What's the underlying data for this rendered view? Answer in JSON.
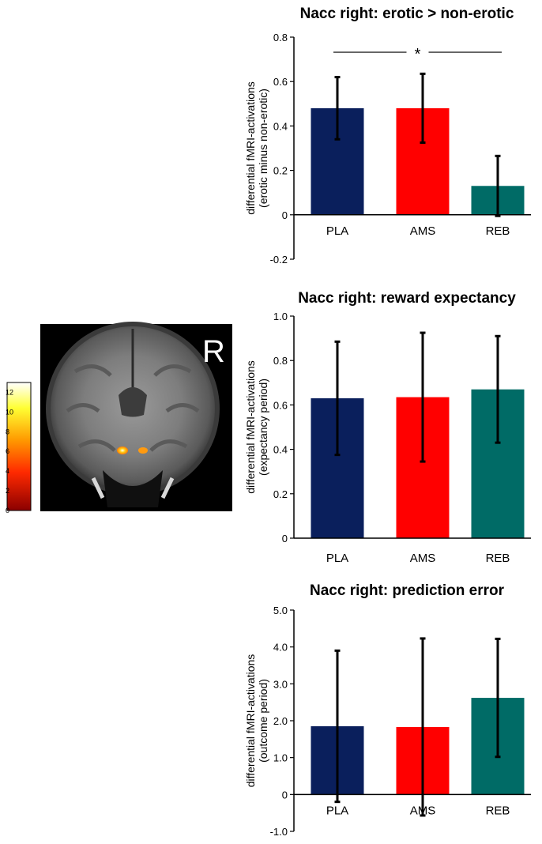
{
  "colors": {
    "PLA": "#0a1f5c",
    "AMS": "#ff0000",
    "REB": "#006b66"
  },
  "brain": {
    "label": "R",
    "colorbar_ticks": [
      "12",
      "10",
      "8",
      "6",
      "4",
      "2",
      "0"
    ],
    "colorbar_range": [
      0,
      13
    ]
  },
  "chart_data": [
    {
      "type": "bar",
      "title": "Nacc right: erotic > non-erotic",
      "ylabel_line1": "differential fMRI-activations",
      "ylabel_line2": "(erotic minus non-erotic)",
      "categories": [
        "PLA",
        "AMS",
        "REB"
      ],
      "values": [
        0.48,
        0.48,
        0.13
      ],
      "error": [
        0.14,
        0.155,
        0.135
      ],
      "ylim": [
        -0.2,
        0.8
      ],
      "yticks": [
        -0.2,
        0,
        0.2,
        0.4,
        0.6,
        0.8
      ],
      "ytick_labels": [
        "-0.2",
        "0",
        "0.2",
        "0.4",
        "0.6",
        "0.8"
      ],
      "significance": {
        "from": "PLA",
        "to": "REB",
        "y": 0.75,
        "label": "*"
      }
    },
    {
      "type": "bar",
      "title": "Nacc right: reward expectancy",
      "ylabel_line1": "differential fMRI-activations",
      "ylabel_line2": "(expectancy period)",
      "categories": [
        "PLA",
        "AMS",
        "REB"
      ],
      "values": [
        0.63,
        0.635,
        0.67
      ],
      "error": [
        0.255,
        0.29,
        0.24
      ],
      "ylim": [
        0,
        1.0
      ],
      "yticks": [
        0,
        0.2,
        0.4,
        0.6,
        0.8,
        1.0
      ],
      "ytick_labels": [
        "0",
        "0.2",
        "0.4",
        "0.6",
        "0.8",
        "1.0"
      ]
    },
    {
      "type": "bar",
      "title": "Nacc right: prediction error",
      "ylabel_line1": "differential fMRI-activations",
      "ylabel_line2": "(outcome period)",
      "categories": [
        "PLA",
        "AMS",
        "REB"
      ],
      "values": [
        1.85,
        1.83,
        2.62
      ],
      "error": [
        2.05,
        2.4,
        1.6
      ],
      "ylim": [
        -1.0,
        5.0
      ],
      "yticks": [
        -1,
        0,
        1,
        2,
        3,
        4,
        5
      ],
      "ytick_labels": [
        "-1.0",
        "0",
        "1.0",
        "2.0",
        "3.0",
        "4.0",
        "5.0"
      ]
    }
  ]
}
